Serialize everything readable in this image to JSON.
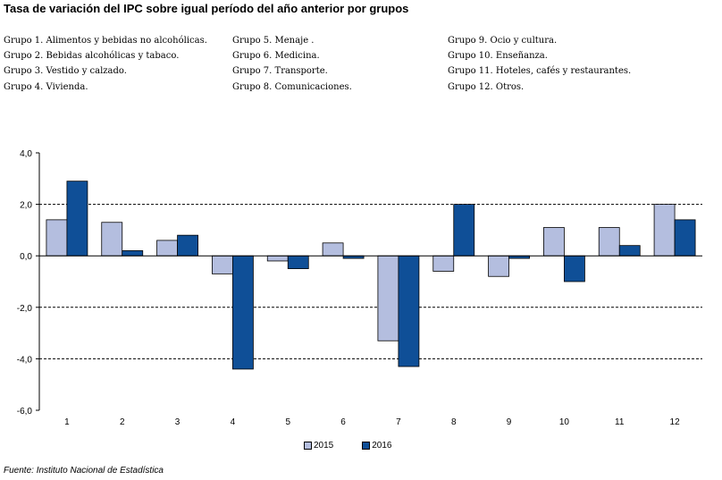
{
  "title": "Tasa de variación del IPC sobre igual período del año anterior por grupos",
  "groups": {
    "col1": [
      "Grupo 1. Alimentos y bebidas no alcohólicas.",
      "Grupo 2. Bebidas alcohólicas y tabaco.",
      "Grupo 3. Vestido y calzado.",
      "Grupo 4. Vivienda."
    ],
    "col2": [
      "Grupo 5. Menaje .",
      "Grupo 6. Medicina.",
      "Grupo 7. Transporte.",
      "Grupo 8. Comunicaciones."
    ],
    "col3": [
      "Grupo 9. Ocio y cultura.",
      "Grupo 10. Enseñanza.",
      "Grupo 11. Hoteles, cafés y restaurantes.",
      "Grupo 12. Otros."
    ]
  },
  "source": "Fuente: Instituto Nacional de Estadística",
  "chart_data": {
    "type": "bar",
    "categories": [
      "1",
      "2",
      "3",
      "4",
      "5",
      "6",
      "7",
      "8",
      "9",
      "10",
      "11",
      "12"
    ],
    "series": [
      {
        "name": "2015",
        "color": "#b4bedf",
        "values": [
          1.4,
          1.3,
          0.6,
          -0.7,
          -0.2,
          0.5,
          -3.3,
          -0.6,
          -0.8,
          1.1,
          1.1,
          2.0
        ]
      },
      {
        "name": "2016",
        "color": "#0f4f97",
        "values": [
          2.9,
          0.2,
          0.8,
          -4.4,
          -0.5,
          -0.1,
          -4.3,
          2.0,
          -0.1,
          -1.0,
          0.4,
          1.4
        ]
      }
    ],
    "ylim": [
      -6,
      4
    ],
    "yticks": [
      4,
      2,
      0,
      -2,
      -4,
      -6
    ],
    "ytick_labels": [
      "4,0",
      "2,0",
      "0,0",
      "-2,0",
      "-4,0",
      "-6,0"
    ],
    "legend_position": "bottom"
  }
}
